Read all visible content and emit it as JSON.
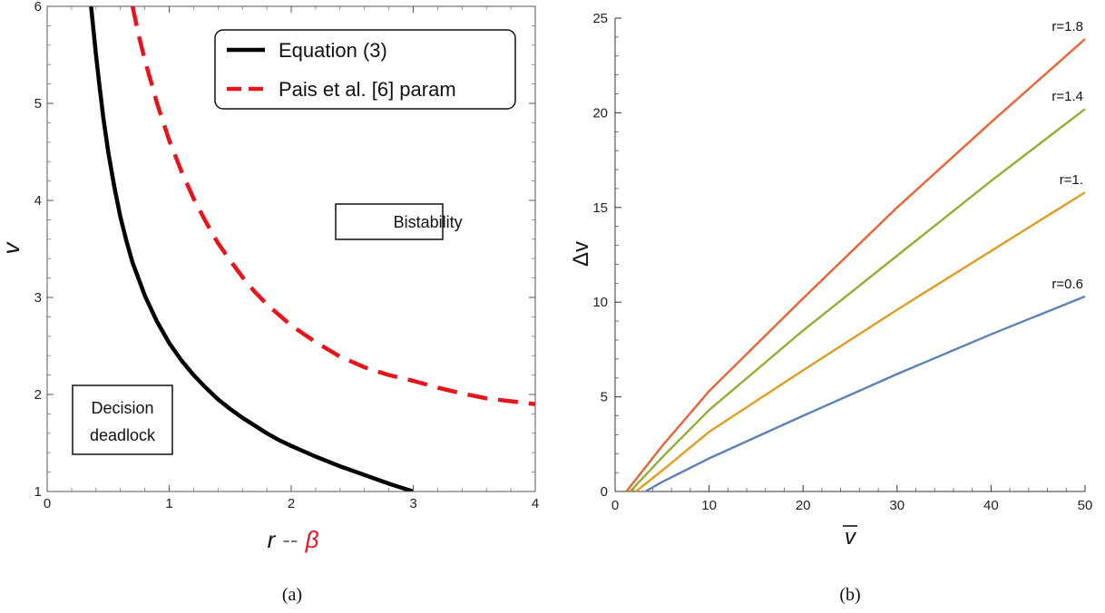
{
  "chart_data": [
    {
      "panel": "(a)",
      "type": "line",
      "xlabel_parts": [
        "r",
        "--",
        "β"
      ],
      "ylabel": "v",
      "xlim": [
        0,
        4
      ],
      "ylim": [
        1,
        6
      ],
      "xticks": [
        "0",
        "1",
        "2",
        "3",
        "4"
      ],
      "yticks": [
        "1",
        "2",
        "3",
        "4",
        "5",
        "6"
      ],
      "legend_position": "top-right",
      "series": [
        {
          "name": "Equation (3)",
          "color": "#000000",
          "style": "solid",
          "x": [
            0.36,
            0.38,
            0.4,
            0.43,
            0.46,
            0.5,
            0.55,
            0.6,
            0.65,
            0.7,
            0.8,
            0.9,
            1.0,
            1.1,
            1.2,
            1.3,
            1.4,
            1.5,
            1.6,
            1.7,
            1.8,
            1.9,
            2.0,
            2.2,
            2.4,
            2.6,
            2.8,
            3.0
          ],
          "y": [
            6.0,
            5.75,
            5.5,
            5.17,
            4.85,
            4.5,
            4.14,
            3.83,
            3.58,
            3.36,
            3.02,
            2.75,
            2.53,
            2.35,
            2.2,
            2.07,
            1.95,
            1.85,
            1.76,
            1.68,
            1.6,
            1.53,
            1.47,
            1.36,
            1.26,
            1.17,
            1.08,
            1.0
          ]
        },
        {
          "name": "Pais et al. [6] param",
          "color": "#e8141b",
          "style": "dashed",
          "x": [
            0.7,
            0.75,
            0.8,
            0.9,
            1.0,
            1.1,
            1.2,
            1.3,
            1.4,
            1.5,
            1.6,
            1.7,
            1.8,
            2.0,
            2.2,
            2.4,
            2.6,
            2.8,
            3.0,
            3.2,
            3.4,
            3.6,
            3.8,
            4.0
          ],
          "y": [
            6.0,
            5.7,
            5.45,
            5.0,
            4.62,
            4.3,
            4.02,
            3.78,
            3.56,
            3.38,
            3.21,
            3.06,
            2.93,
            2.71,
            2.54,
            2.39,
            2.28,
            2.2,
            2.14,
            2.07,
            2.01,
            1.96,
            1.93,
            1.9
          ]
        }
      ],
      "annotations": [
        {
          "lines": [
            "Bistability"
          ],
          "x": 3.12,
          "y": 4.2
        },
        {
          "lines": [
            "Decision",
            "deadlock"
          ],
          "x": 0.52,
          "y": 1.82
        }
      ]
    },
    {
      "panel": "(b)",
      "type": "line",
      "xlabel": "v",
      "xlabel_overbar": true,
      "ylabel": "Δv",
      "xlim": [
        0,
        50
      ],
      "ylim": [
        0,
        25
      ],
      "xticks": [
        "0",
        "10",
        "20",
        "30",
        "40",
        "50"
      ],
      "yticks": [
        "0",
        "5",
        "10",
        "15",
        "20",
        "25"
      ],
      "series": [
        {
          "label": "r=0.6",
          "color": "#5e81b5",
          "x": [
            3.2,
            5,
            10,
            20,
            30,
            40,
            50
          ],
          "y": [
            0,
            0.5,
            1.75,
            4.0,
            6.2,
            8.3,
            10.3
          ]
        },
        {
          "label": "r=1.",
          "color": "#e19c24",
          "x": [
            2.2,
            5,
            10,
            20,
            30,
            40,
            50
          ],
          "y": [
            0,
            1.1,
            3.15,
            6.4,
            9.6,
            12.7,
            15.8
          ]
        },
        {
          "label": "r=1.4",
          "color": "#8fb032",
          "x": [
            1.6,
            5,
            10,
            20,
            30,
            40,
            50
          ],
          "y": [
            0,
            1.8,
            4.3,
            8.5,
            12.45,
            16.4,
            20.2
          ]
        },
        {
          "label": "r=1.8",
          "color": "#eb6235",
          "x": [
            1.2,
            5,
            10,
            20,
            30,
            40,
            50
          ],
          "y": [
            0,
            2.4,
            5.3,
            10.2,
            15.0,
            19.5,
            23.9
          ]
        }
      ]
    }
  ]
}
